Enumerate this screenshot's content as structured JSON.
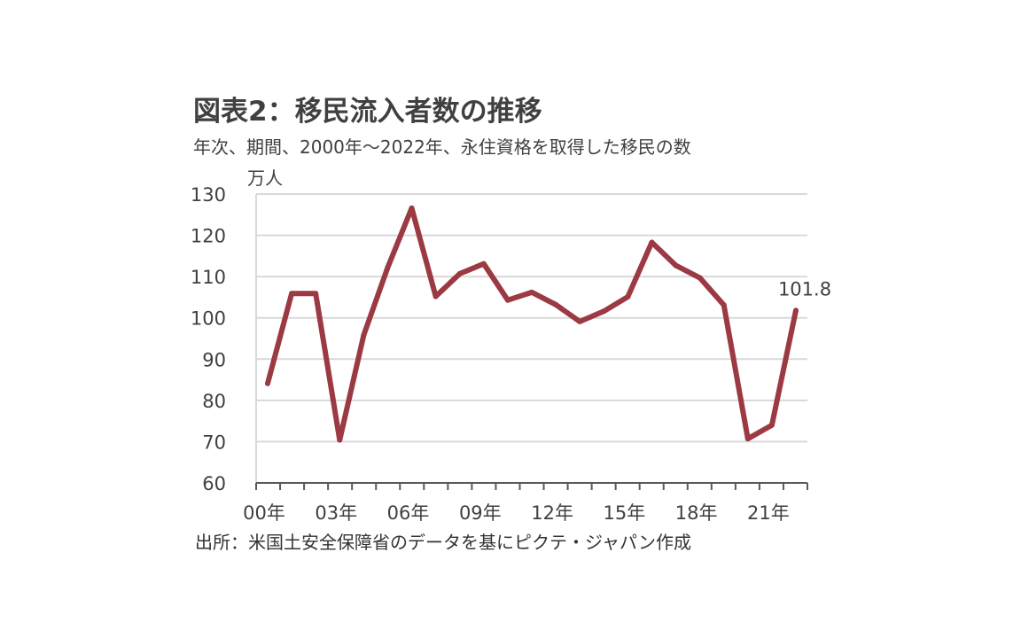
{
  "title": "図表2：移民流入者数の推移",
  "subtitle": "年次、期間、2000年～2022年、永住資格を取得した移民の数",
  "unit": "万人",
  "source": "出所：米国土安全保障省のデータを基にピクテ・ジャパン作成",
  "colors": {
    "line": "#9B3A43",
    "grid": "#D9D9D9",
    "axis": "#595959"
  },
  "chart_data": {
    "type": "line",
    "title": "図表2：移民流入者数の推移",
    "subtitle": "年次、期間、2000年～2022年、永住資格を取得した移民の数",
    "ylabel": "万人",
    "xlabel": "",
    "ylim": [
      60,
      130
    ],
    "yticks": [
      60,
      70,
      80,
      90,
      100,
      110,
      120,
      130
    ],
    "x": [
      2000,
      2001,
      2002,
      2003,
      2004,
      2005,
      2006,
      2007,
      2008,
      2009,
      2010,
      2011,
      2012,
      2013,
      2014,
      2015,
      2016,
      2017,
      2018,
      2019,
      2020,
      2021,
      2022
    ],
    "xtick_labels": [
      "00年",
      "03年",
      "06年",
      "09年",
      "12年",
      "15年",
      "18年",
      "21年"
    ],
    "xtick_years": [
      2000,
      2003,
      2006,
      2009,
      2012,
      2015,
      2018,
      2021
    ],
    "series": [
      {
        "values": [
          84.1,
          105.9,
          105.9,
          70.4,
          95.8,
          112.2,
          126.6,
          105.2,
          110.7,
          113.1,
          104.3,
          106.2,
          103.2,
          99.1,
          101.6,
          105.1,
          118.3,
          112.7,
          109.7,
          103.1,
          70.7,
          74.0,
          101.8
        ]
      }
    ],
    "annotations": [
      {
        "x": 2022,
        "text": "101.8"
      }
    ],
    "grid": true,
    "legend": "none"
  }
}
